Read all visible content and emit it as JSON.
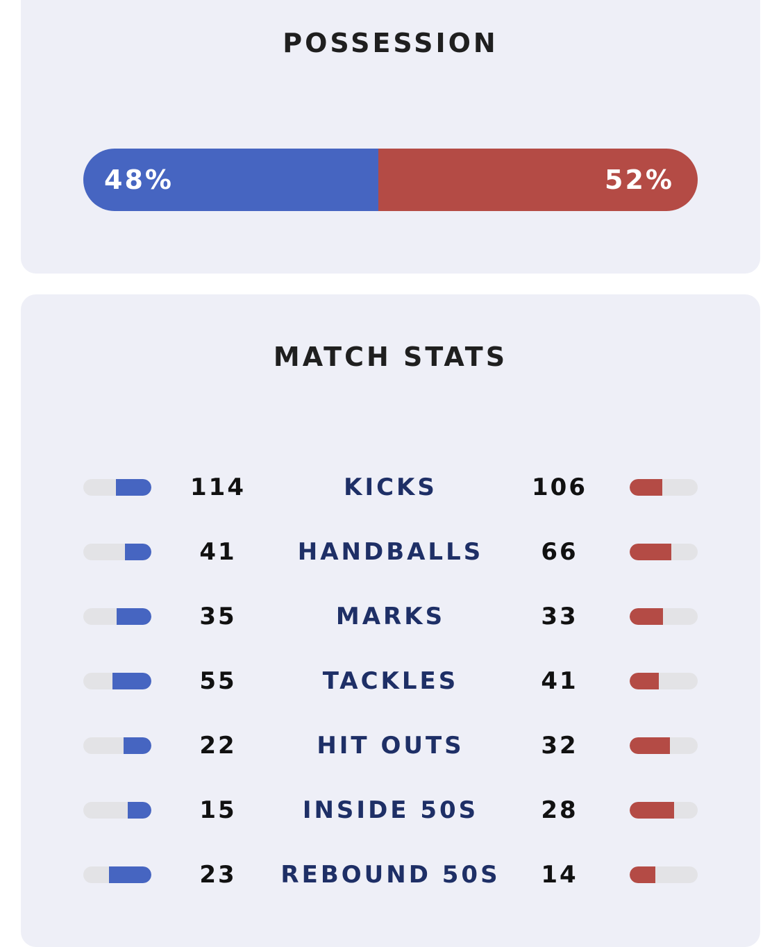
{
  "possession": {
    "title": "POSSESSION",
    "home_pct": 48,
    "away_pct": 52,
    "home_label": "48%",
    "away_label": "52%"
  },
  "match_stats": {
    "title": "MATCH STATS",
    "rows": [
      {
        "label": "KICKS",
        "home": "114",
        "away": "106"
      },
      {
        "label": "HANDBALLS",
        "home": "41",
        "away": "66"
      },
      {
        "label": "MARKS",
        "home": "35",
        "away": "33"
      },
      {
        "label": "TACKLES",
        "home": "55",
        "away": "41"
      },
      {
        "label": "HIT OUTS",
        "home": "22",
        "away": "32"
      },
      {
        "label": "INSIDE 50S",
        "home": "15",
        "away": "28"
      },
      {
        "label": "REBOUND 50S",
        "home": "23",
        "away": "14"
      }
    ]
  },
  "colors": {
    "home": "#4665c1",
    "away": "#b44b45",
    "stat_label": "#1e2f66",
    "card_bg": "#eeeff7",
    "track": "#e3e3e6"
  }
}
